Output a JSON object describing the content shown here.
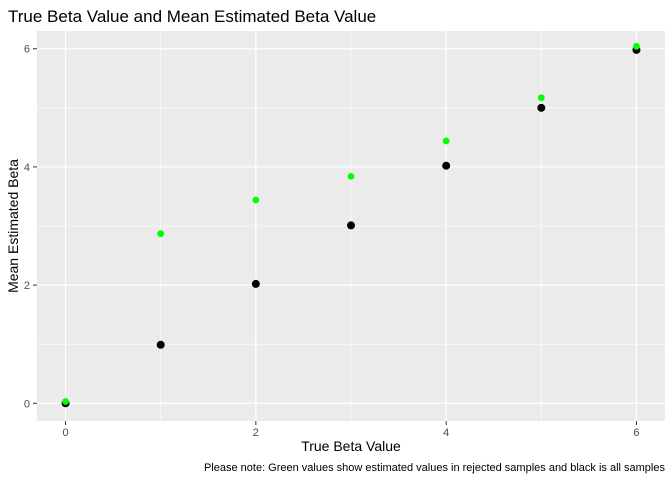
{
  "chart_data": {
    "type": "scatter",
    "title": "True Beta Value and Mean Estimated Beta Value",
    "xlabel": "True Beta Value",
    "ylabel": "Mean Estimated Beta",
    "caption": "Please note: Green values show estimated values in rejected samples and black is all samples",
    "xlim": [
      -0.3,
      6.3
    ],
    "ylim": [
      -0.3,
      6.3
    ],
    "xticks": [
      0,
      2,
      4,
      6
    ],
    "yticks": [
      0,
      2,
      4,
      6
    ],
    "grid": true,
    "legend": "none",
    "series": [
      {
        "color": "#000000",
        "x": [
          0,
          1,
          2,
          3,
          4,
          5,
          6
        ],
        "y": [
          0.0,
          0.99,
          2.02,
          3.01,
          4.02,
          5.0,
          5.98
        ]
      },
      {
        "color": "#00ff00",
        "x": [
          0,
          1,
          2,
          3,
          4,
          5,
          6
        ],
        "y": [
          0.03,
          2.87,
          3.44,
          3.84,
          4.44,
          5.17,
          6.04
        ]
      }
    ],
    "colors": {
      "panel": "#ebebeb",
      "gridline": "#ffffff",
      "tick_text": "#4d4d4d"
    }
  }
}
